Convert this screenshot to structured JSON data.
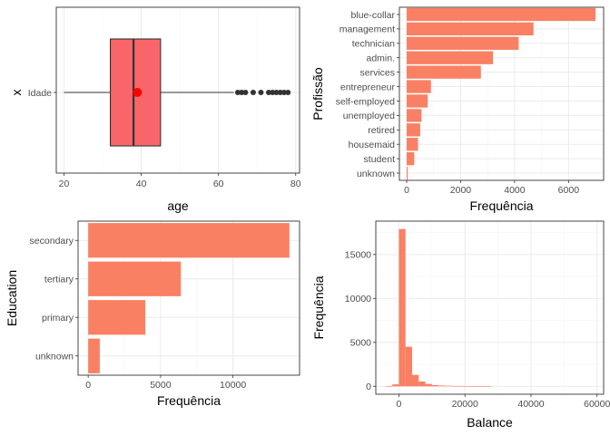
{
  "chart_data": [
    {
      "type": "boxplot",
      "xlabel": "age",
      "ylabel": "x",
      "category": "Idade",
      "xlim": [
        18,
        81
      ],
      "x_ticks": [
        20,
        40,
        60,
        80
      ],
      "box": {
        "min": 20,
        "q1": 32,
        "median": 38,
        "q3": 45,
        "whisker_high": 64,
        "mean": 39
      },
      "outliers": [
        65,
        66,
        67,
        69,
        71,
        73,
        74,
        75,
        76,
        77,
        78
      ],
      "colors": {
        "box_fill": "#f8666a",
        "mean": "#ff0000",
        "outlier": "#333333"
      },
      "grid": true
    },
    {
      "type": "bar",
      "orientation": "horizontal",
      "xlabel": "Frequência",
      "ylabel": "Profissão",
      "categories": [
        "blue-collar",
        "management",
        "technician",
        "admin.",
        "services",
        "entrepreneur",
        "self-employed",
        "unemployed",
        "retired",
        "housemaid",
        "student",
        "unknown"
      ],
      "values": [
        7000,
        4700,
        4150,
        3200,
        2750,
        900,
        780,
        550,
        500,
        420,
        280,
        40
      ],
      "xlim": [
        -270,
        7300
      ],
      "x_ticks": [
        0,
        2000,
        4000,
        6000
      ],
      "colors": {
        "bar": "#fa8063"
      },
      "grid": true
    },
    {
      "type": "bar",
      "orientation": "horizontal",
      "xlabel": "Frequência",
      "ylabel": "Education",
      "categories": [
        "secondary",
        "tertiary",
        "primary",
        "unknown"
      ],
      "values": [
        13900,
        6400,
        3950,
        800
      ],
      "xlim": [
        -700,
        14600
      ],
      "x_ticks": [
        0,
        5000,
        10000
      ],
      "colors": {
        "bar": "#fa8063"
      },
      "grid": true
    },
    {
      "type": "histogram",
      "xlabel": "Balance",
      "ylabel": "Frequência",
      "bin_width": 2000,
      "bins": [
        {
          "x0": -4000,
          "x1": -2000,
          "count": 15
        },
        {
          "x0": -2000,
          "x1": 0,
          "count": 220
        },
        {
          "x0": 0,
          "x1": 2000,
          "count": 17900
        },
        {
          "x0": 2000,
          "x1": 4000,
          "count": 4500
        },
        {
          "x0": 4000,
          "x1": 6000,
          "count": 1300
        },
        {
          "x0": 6000,
          "x1": 8000,
          "count": 550
        },
        {
          "x0": 8000,
          "x1": 10000,
          "count": 270
        },
        {
          "x0": 10000,
          "x1": 12000,
          "count": 140
        },
        {
          "x0": 12000,
          "x1": 14000,
          "count": 90
        },
        {
          "x0": 14000,
          "x1": 16000,
          "count": 60
        },
        {
          "x0": 16000,
          "x1": 18000,
          "count": 40
        },
        {
          "x0": 18000,
          "x1": 20000,
          "count": 25
        },
        {
          "x0": 20000,
          "x1": 22000,
          "count": 15
        },
        {
          "x0": 22000,
          "x1": 24000,
          "count": 10
        },
        {
          "x0": 24000,
          "x1": 26000,
          "count": 8
        },
        {
          "x0": 26000,
          "x1": 28000,
          "count": 5
        }
      ],
      "xlim": [
        -7000,
        62000
      ],
      "ylim": [
        -900,
        18800
      ],
      "x_ticks": [
        0,
        20000,
        40000,
        60000
      ],
      "y_ticks": [
        0,
        5000,
        10000,
        15000
      ],
      "colors": {
        "bar": "#fa8063"
      },
      "grid": true
    }
  ]
}
